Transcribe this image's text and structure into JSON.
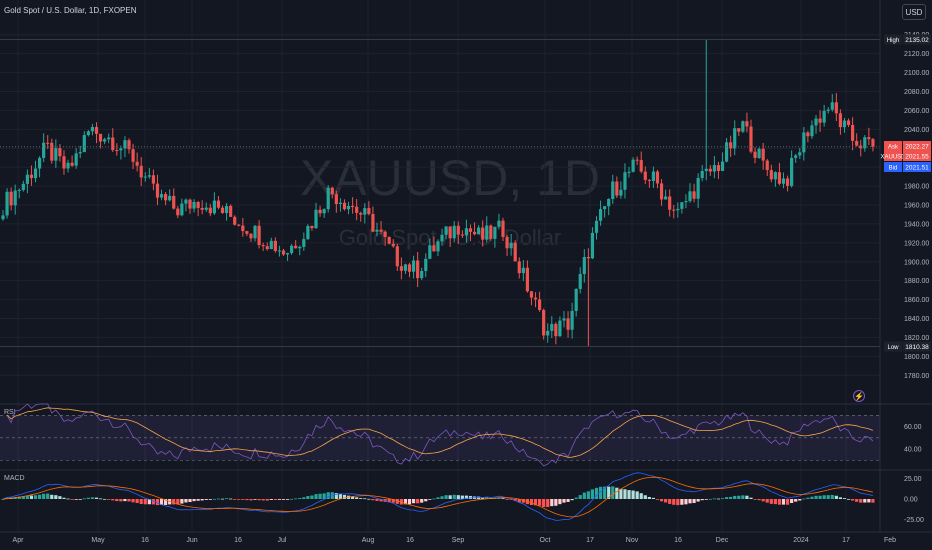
{
  "header": {
    "symbol_title": "Gold Spot / U.S. Dollar, 1D, FXOPEN",
    "currency_button": "USD"
  },
  "watermark": {
    "ticker": "XAUUSD, 1D",
    "name": "Gold Spot / U.S. Dollar"
  },
  "price_scale": {
    "ticks": [
      1780,
      1800,
      1820,
      1840,
      1860,
      1880,
      1900,
      1920,
      1940,
      1960,
      1980,
      2000,
      2020,
      2040,
      2060,
      2080,
      2100,
      2120,
      2140
    ],
    "high": {
      "label": "High",
      "value": "2135.02"
    },
    "low": {
      "label": "Low",
      "value": "1810.38"
    },
    "ask": {
      "label": "Ask",
      "value": "2022.27"
    },
    "symbol": {
      "label": "XAUUSD",
      "value": "2021.55"
    },
    "bid": {
      "label": "Bid",
      "value": "2021.51"
    }
  },
  "rsi": {
    "label": "RSI",
    "ticks": [
      "60.00",
      "40.00"
    ]
  },
  "macd": {
    "label": "MACD",
    "ticks": [
      "25.00",
      "0.00",
      "-25.00"
    ]
  },
  "time_axis": [
    "Apr",
    "May",
    "16",
    "Jun",
    "16",
    "Jul",
    "Aug",
    "16",
    "Sep",
    "Oct",
    "17",
    "Nov",
    "16",
    "Dec",
    "2024",
    "17",
    "Feb"
  ],
  "colors": {
    "up": "#26a69a",
    "down": "#ef5350",
    "background": "#131722",
    "rsi_line": "#7e57c2",
    "rsi_ma": "#f7a54a",
    "macd_line": "#2962ff",
    "signal_line": "#ff6d00"
  },
  "chart_data": {
    "type": "candlestick",
    "title": "Gold Spot / U.S. Dollar, 1D, FXOPEN",
    "ylim": [
      1775,
      2145
    ],
    "anchors": [
      [
        "Apr",
        1960
      ],
      [
        "Apr",
        1985
      ],
      [
        "Apr",
        2020
      ],
      [
        "May",
        1995
      ],
      [
        "May",
        2040
      ],
      [
        "May",
        2030
      ],
      [
        "16",
        2010
      ],
      [
        "16",
        1970
      ],
      [
        "Jun",
        1955
      ],
      [
        "Jun",
        1965
      ],
      [
        "16",
        1955
      ],
      [
        "16",
        1940
      ],
      [
        "Jul",
        1925
      ],
      [
        "Jul",
        1910
      ],
      [
        "Jul",
        1935
      ],
      [
        "Jul",
        1975
      ],
      [
        "Aug",
        1960
      ],
      [
        "Aug",
        1940
      ],
      [
        "16",
        1905
      ],
      [
        "16",
        1890
      ],
      [
        "Sep",
        1920
      ],
      [
        "Sep",
        1940
      ],
      [
        "Sep",
        1925
      ],
      [
        "Sep",
        1935
      ],
      [
        "Oct",
        1880
      ],
      [
        "Oct",
        1825
      ],
      [
        "Oct",
        1835
      ],
      [
        "17",
        1920
      ],
      [
        "17",
        1975
      ],
      [
        "Nov",
        2000
      ],
      [
        "Nov",
        1985
      ],
      [
        "16",
        1950
      ],
      [
        "16",
        1985
      ],
      [
        "Dec",
        2005
      ],
      [
        "Dec",
        2045
      ],
      [
        "Dec",
        2000
      ],
      [
        "Dec",
        1985
      ],
      [
        "2024",
        2040
      ],
      [
        "2024",
        2065
      ],
      [
        "17",
        2030
      ],
      [
        "17",
        2021.55
      ]
    ],
    "high": 2135.02,
    "low": 1810.38,
    "last": 2021.55
  }
}
